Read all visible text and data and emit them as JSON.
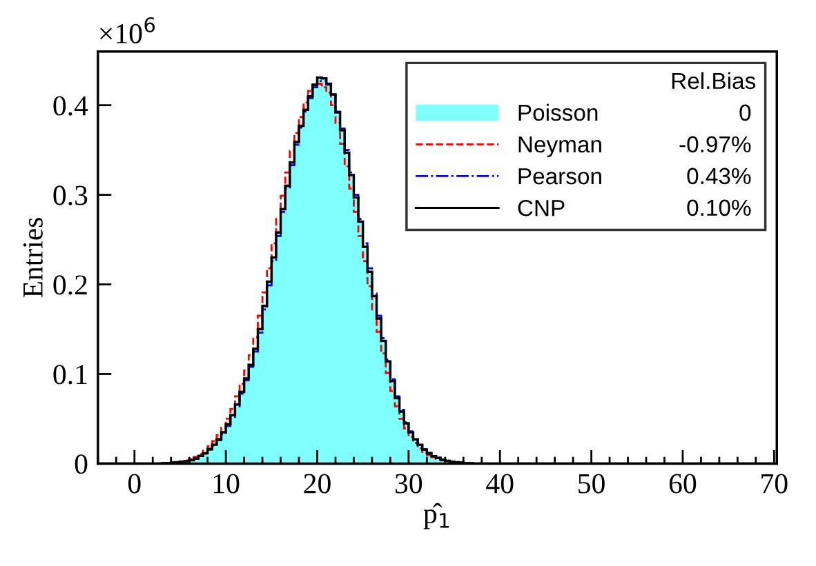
{
  "chart_data": {
    "type": "histogram",
    "xlabel": "p̂$_{1}$",
    "ylabel": "Entries",
    "legend_title": "Rel.Bias",
    "annotations": [
      "×10$^{6}$",
      "0",
      "-0.97%",
      "0.43%",
      "0.10%"
    ],
    "xlim": [
      -4,
      70.3
    ],
    "xticks": [
      0,
      10,
      20,
      30,
      40,
      50,
      60,
      70
    ],
    "ylim": [
      0,
      0.46
    ],
    "yticks": [
      0,
      0.1,
      0.2,
      0.3,
      0.4
    ],
    "legend": "top right",
    "bins": [
      -4,
      3,
      3.5,
      4,
      4.5,
      5,
      5.5,
      6,
      6.5,
      7,
      7.5,
      8,
      8.5,
      9,
      9.5,
      10,
      10.5,
      11,
      11.5,
      12,
      12.5,
      13,
      13.5,
      14,
      14.5,
      15,
      15.5,
      16,
      16.5,
      17,
      17.5,
      18,
      18.5,
      19,
      19.5,
      20,
      20.5,
      21,
      21.5,
      22,
      22.5,
      23,
      23.5,
      24,
      24.5,
      25,
      25.5,
      26,
      26.5,
      27,
      27.5,
      28,
      28.5,
      29,
      29.5,
      30,
      30.5,
      31,
      31.5,
      32,
      32.5,
      33,
      33.5,
      34,
      34.5,
      35,
      35.5,
      36,
      36.5,
      37,
      70
    ],
    "series": [
      {
        "name": "Poisson",
        "color": "#80ffff",
        "values": [
          0,
          0.0003,
          0.0005,
          0.001,
          0.0015,
          0.002,
          0.003,
          0.004,
          0.006,
          0.009,
          0.012,
          0.017,
          0.022,
          0.028,
          0.036,
          0.045,
          0.055,
          0.068,
          0.082,
          0.097,
          0.112,
          0.13,
          0.152,
          0.178,
          0.205,
          0.232,
          0.26,
          0.286,
          0.312,
          0.338,
          0.36,
          0.378,
          0.396,
          0.41,
          0.422,
          0.43,
          0.428,
          0.422,
          0.41,
          0.39,
          0.37,
          0.345,
          0.32,
          0.295,
          0.268,
          0.24,
          0.212,
          0.185,
          0.16,
          0.135,
          0.112,
          0.09,
          0.072,
          0.057,
          0.044,
          0.034,
          0.026,
          0.02,
          0.015,
          0.011,
          0.008,
          0.006,
          0.004,
          0.003,
          0.002,
          0.0015,
          0.001,
          0.0005,
          0.0003,
          0
        ]
      },
      {
        "name": "Neyman",
        "line_style": "dashed",
        "color": "#ff0000",
        "values": [
          0,
          0.0004,
          0.0008,
          0.0013,
          0.0018,
          0.0025,
          0.0035,
          0.005,
          0.0075,
          0.0105,
          0.0145,
          0.0195,
          0.025,
          0.032,
          0.04,
          0.05,
          0.061,
          0.075,
          0.089,
          0.104,
          0.121,
          0.141,
          0.165,
          0.191,
          0.218,
          0.246,
          0.273,
          0.299,
          0.325,
          0.349,
          0.369,
          0.387,
          0.403,
          0.416,
          0.422,
          0.424,
          0.42,
          0.414,
          0.4,
          0.38,
          0.357,
          0.332,
          0.307,
          0.281,
          0.254,
          0.226,
          0.198,
          0.172,
          0.147,
          0.123,
          0.101,
          0.081,
          0.064,
          0.05,
          0.039,
          0.03,
          0.023,
          0.017,
          0.013,
          0.0095,
          0.007,
          0.005,
          0.0035,
          0.0025,
          0.0018,
          0.0012,
          0.0008,
          0.0004,
          0.0002,
          0
        ]
      },
      {
        "name": "Pearson",
        "line_style": "dashdot",
        "color": "#0000ff",
        "values": [
          0,
          0.0002,
          0.0004,
          0.0008,
          0.0013,
          0.0018,
          0.0027,
          0.0037,
          0.0055,
          0.0083,
          0.011,
          0.0155,
          0.02,
          0.026,
          0.033,
          0.042,
          0.052,
          0.064,
          0.078,
          0.093,
          0.108,
          0.125,
          0.146,
          0.172,
          0.199,
          0.226,
          0.254,
          0.281,
          0.307,
          0.333,
          0.356,
          0.375,
          0.393,
          0.408,
          0.42,
          0.427,
          0.427,
          0.423,
          0.412,
          0.393,
          0.374,
          0.35,
          0.325,
          0.3,
          0.273,
          0.246,
          0.218,
          0.19,
          0.165,
          0.14,
          0.116,
          0.094,
          0.075,
          0.06,
          0.046,
          0.036,
          0.027,
          0.021,
          0.016,
          0.012,
          0.0085,
          0.0065,
          0.0045,
          0.0032,
          0.0022,
          0.0016,
          0.0011,
          0.0006,
          0.0003,
          0
        ]
      },
      {
        "name": "CNP",
        "line_style": "solid",
        "color": "#000000",
        "values": [
          0,
          0.0003,
          0.0005,
          0.001,
          0.0014,
          0.0019,
          0.0028,
          0.0038,
          0.0057,
          0.0086,
          0.0115,
          0.0163,
          0.021,
          0.027,
          0.035,
          0.044,
          0.054,
          0.066,
          0.08,
          0.095,
          0.11,
          0.128,
          0.15,
          0.176,
          0.203,
          0.23,
          0.258,
          0.284,
          0.31,
          0.336,
          0.359,
          0.377,
          0.395,
          0.41,
          0.423,
          0.431,
          0.43,
          0.424,
          0.412,
          0.392,
          0.372,
          0.347,
          0.322,
          0.297,
          0.27,
          0.242,
          0.214,
          0.187,
          0.162,
          0.137,
          0.114,
          0.092,
          0.073,
          0.058,
          0.045,
          0.035,
          0.027,
          0.021,
          0.0155,
          0.0115,
          0.0083,
          0.0062,
          0.0042,
          0.0031,
          0.0021,
          0.0015,
          0.001,
          0.0005,
          0.0003,
          0
        ]
      }
    ]
  }
}
